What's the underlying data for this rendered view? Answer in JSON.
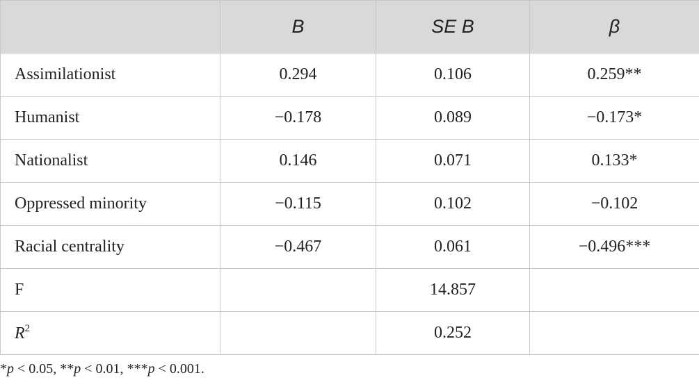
{
  "table": {
    "headers": [
      "",
      "B",
      "SE B",
      "β"
    ],
    "rows": [
      {
        "label": "Assimilationist",
        "b": "0.294",
        "se_b": "0.106",
        "beta": "0.259**"
      },
      {
        "label": "Humanist",
        "b": "−0.178",
        "se_b": "0.089",
        "beta": "−0.173*"
      },
      {
        "label": "Nationalist",
        "b": "0.146",
        "se_b": "0.071",
        "beta": "0.133*"
      },
      {
        "label": "Oppressed minority",
        "b": "−0.115",
        "se_b": "0.102",
        "beta": "−0.102"
      },
      {
        "label": "Racial centrality",
        "b": "−0.467",
        "se_b": "0.061",
        "beta": "−0.496***"
      }
    ],
    "f_row": {
      "label": "F",
      "value": "14.857"
    },
    "r2_row": {
      "label_base": "R",
      "label_sup": "2",
      "value": "0.252"
    }
  },
  "note": {
    "p1_star": "*",
    "p1_rest": " < 0.05, ",
    "p2_star": "**",
    "p2_rest": " < 0.01, ",
    "p3_star": "***",
    "p3_rest": " < 0.001.",
    "p_symbol": "p"
  }
}
